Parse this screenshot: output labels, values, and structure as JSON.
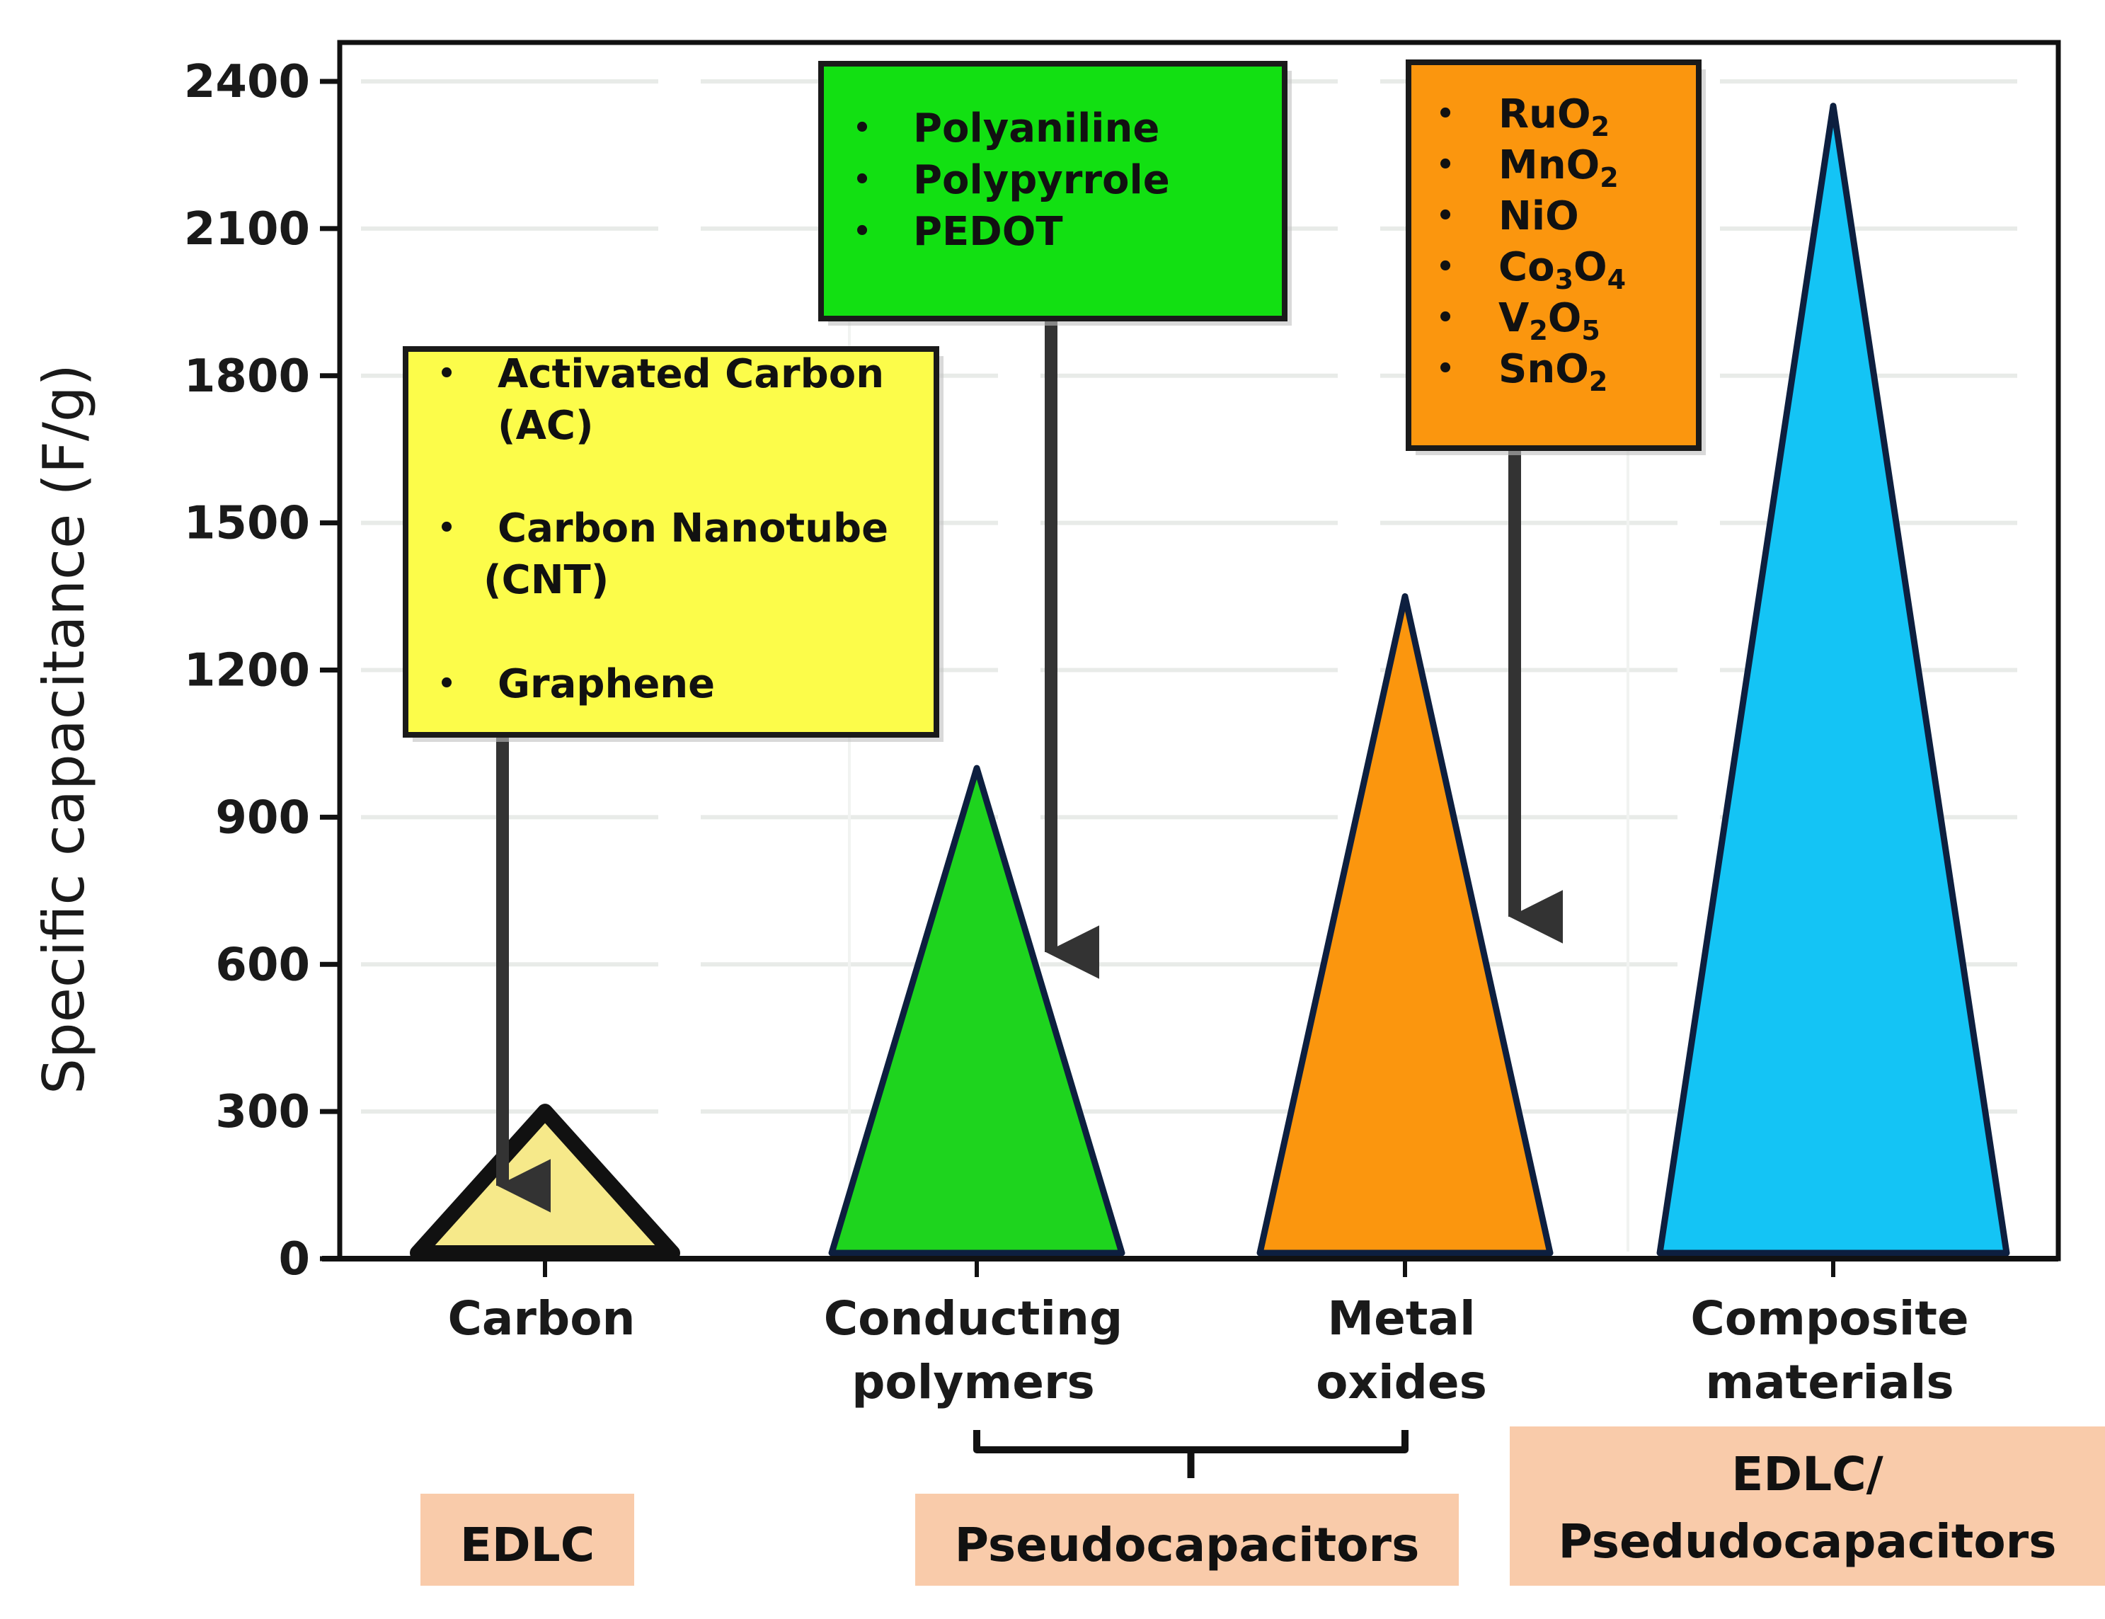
{
  "chart_data": {
    "type": "bar",
    "mark_shape": "triangle",
    "ylabel": "Specific capacitance (F/g)",
    "xlabel": "",
    "ylim": [
      0,
      2400
    ],
    "yticks": [
      0,
      300,
      600,
      900,
      1200,
      1500,
      1800,
      2100,
      2400
    ],
    "grid": true,
    "categories": [
      {
        "lines": [
          "Carbon"
        ]
      },
      {
        "lines": [
          "Conducting",
          "polymers"
        ]
      },
      {
        "lines": [
          "Metal",
          "oxides"
        ]
      },
      {
        "lines": [
          "Composite",
          "materials"
        ]
      }
    ],
    "values": [
      300,
      1000,
      1350,
      2350
    ],
    "colors": [
      "#f6e98a",
      "#1ed41e",
      "#fb960e",
      "#14c4f5"
    ],
    "annotations": [
      {
        "color": "#fcfc4a",
        "points_to": 0,
        "items": [
          {
            "lines": [
              "Activated Carbon",
              "(AC)"
            ]
          },
          {
            "lines": [
              "Carbon Nanotube",
              "(CNT)"
            ]
          },
          {
            "lines": [
              "Graphene"
            ]
          }
        ]
      },
      {
        "color": "#12e012",
        "points_to": 1,
        "items": [
          {
            "lines": [
              "Polyaniline"
            ]
          },
          {
            "lines": [
              "Polypyrrole"
            ]
          },
          {
            "lines": [
              "PEDOT"
            ]
          }
        ]
      },
      {
        "color": "#fb960e",
        "points_to": 2,
        "items": [
          {
            "parts": [
              {
                "t": "RuO"
              },
              {
                "t": "2",
                "sub": true
              }
            ]
          },
          {
            "parts": [
              {
                "t": "MnO"
              },
              {
                "t": "2",
                "sub": true
              }
            ]
          },
          {
            "parts": [
              {
                "t": "NiO"
              }
            ]
          },
          {
            "parts": [
              {
                "t": "Co"
              },
              {
                "t": "3",
                "sub": true
              },
              {
                "t": "O"
              },
              {
                "t": "4",
                "sub": true
              }
            ]
          },
          {
            "parts": [
              {
                "t": "V"
              },
              {
                "t": "2",
                "sub": true
              },
              {
                "t": "O"
              },
              {
                "t": "5",
                "sub": true
              }
            ]
          },
          {
            "parts": [
              {
                "t": "SnO"
              },
              {
                "t": "2",
                "sub": true
              }
            ]
          }
        ]
      }
    ],
    "groups": [
      {
        "lines": [
          "EDLC"
        ],
        "covers": [
          0
        ]
      },
      {
        "lines": [
          "Pseudocapacitors"
        ],
        "covers": [
          1,
          2
        ]
      },
      {
        "lines": [
          "EDLC/",
          "Psedudocapacitors"
        ],
        "covers": [
          3
        ]
      }
    ],
    "group_color": "#f9cbaa"
  }
}
